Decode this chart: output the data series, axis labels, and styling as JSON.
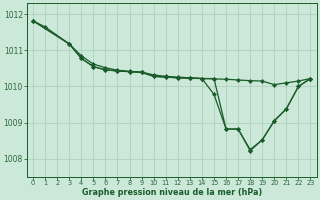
{
  "bg_color": "#cce8d8",
  "grid_color": "#aacbbb",
  "line_color": "#1a5c2a",
  "marker_color": "#1a5c2a",
  "xlabel": "Graphe pression niveau de la mer (hPa)",
  "xlabel_color": "#1a5c2a",
  "xtick_color": "#2a6a3a",
  "ytick_color": "#2a6a3a",
  "ylim": [
    1007.5,
    1012.3
  ],
  "xlim": [
    -0.5,
    23.5
  ],
  "xticks": [
    0,
    1,
    2,
    3,
    4,
    5,
    6,
    7,
    8,
    9,
    10,
    11,
    12,
    13,
    14,
    15,
    16,
    17,
    18,
    19,
    20,
    21,
    22,
    23
  ],
  "yticks": [
    1008,
    1009,
    1010,
    1011,
    1012
  ],
  "line1": {
    "x": [
      0,
      1,
      3,
      4,
      5,
      6,
      7,
      8,
      9,
      10,
      11,
      12,
      13,
      14,
      15,
      16,
      17,
      18,
      19,
      20,
      21,
      22,
      23
    ],
    "y": [
      1011.82,
      1011.65,
      1011.18,
      1010.85,
      1010.62,
      1010.52,
      1010.45,
      1010.42,
      1010.4,
      1010.32,
      1010.28,
      1010.26,
      1010.24,
      1010.22,
      1010.21,
      1010.2,
      1010.18,
      1010.16,
      1010.15,
      1010.05,
      1010.1,
      1010.15,
      1010.22
    ]
  },
  "line2": {
    "x": [
      0,
      3,
      4,
      5,
      6,
      7,
      8,
      9,
      10,
      11,
      12,
      13,
      14,
      15,
      16,
      17,
      18,
      19,
      20,
      21,
      22,
      23
    ],
    "y": [
      1011.82,
      1011.18,
      1010.78,
      1010.55,
      1010.46,
      1010.43,
      1010.41,
      1010.39,
      1010.28,
      1010.26,
      1010.24,
      1010.23,
      1010.22,
      1009.78,
      1008.82,
      1008.82,
      1008.25,
      1008.52,
      1009.05,
      1009.38,
      1010.0,
      1010.22
    ]
  },
  "line3": {
    "x": [
      0,
      3,
      4,
      5,
      6,
      7,
      8,
      9,
      10,
      11,
      12,
      13,
      14,
      15,
      16,
      17,
      18,
      19,
      20,
      21,
      22,
      23
    ],
    "y": [
      1011.82,
      1011.18,
      1010.78,
      1010.55,
      1010.46,
      1010.43,
      1010.41,
      1010.39,
      1010.28,
      1010.26,
      1010.24,
      1010.23,
      1010.22,
      1010.22,
      1008.82,
      1008.82,
      1008.22,
      1008.52,
      1009.05,
      1009.38,
      1010.0,
      1010.22
    ]
  }
}
